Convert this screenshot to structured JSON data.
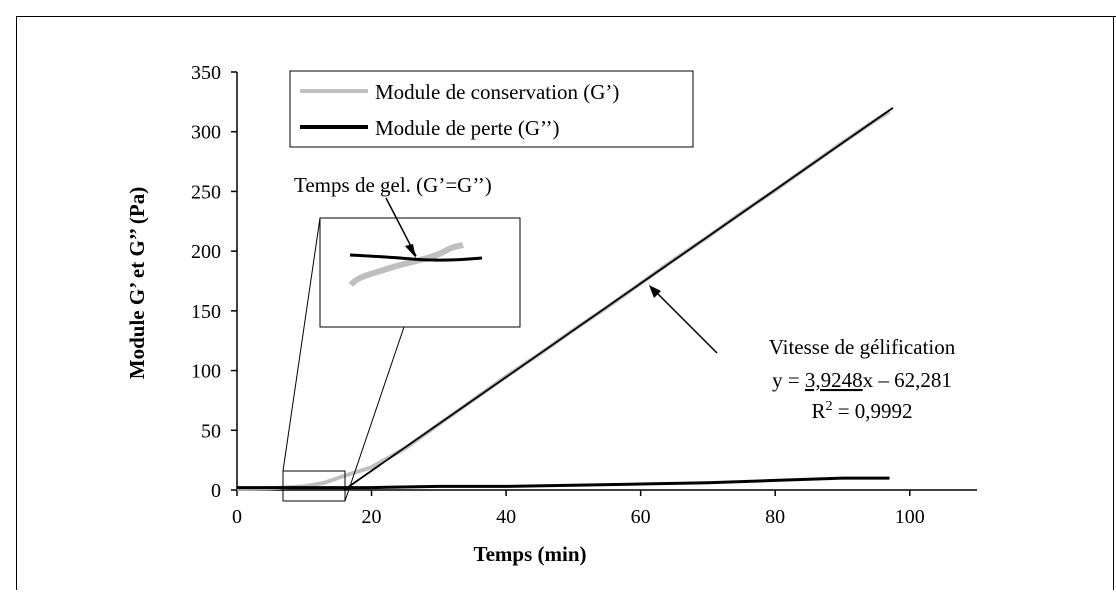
{
  "chart_data": {
    "type": "line",
    "title": "",
    "xlabel": "Temps (min)",
    "ylabel": "Module G’ et G’’ (Pa)",
    "xlim": [
      0,
      110
    ],
    "ylim": [
      0,
      350
    ],
    "x_ticks": [
      0,
      20,
      40,
      60,
      80,
      100
    ],
    "y_ticks": [
      0,
      50,
      100,
      150,
      200,
      250,
      300,
      350
    ],
    "grid": false,
    "legend_position": "top-center",
    "series": [
      {
        "name": "Module de conservation (G’)",
        "color": "#bfbfbf",
        "points": [
          [
            0,
            1
          ],
          [
            5,
            1.5
          ],
          [
            10,
            3
          ],
          [
            13,
            6
          ],
          [
            16,
            12
          ],
          [
            20,
            19
          ],
          [
            25,
            35
          ],
          [
            30,
            55
          ],
          [
            35,
            75
          ],
          [
            40,
            95
          ],
          [
            45,
            114
          ],
          [
            50,
            134
          ],
          [
            55,
            153
          ],
          [
            60,
            173
          ],
          [
            65,
            193
          ],
          [
            70,
            212
          ],
          [
            75,
            232
          ],
          [
            80,
            251
          ],
          [
            85,
            271
          ],
          [
            90,
            291
          ],
          [
            95,
            310
          ],
          [
            97,
            317
          ]
        ]
      },
      {
        "name": "Module de perte (G’’)",
        "color": "#000000",
        "points": [
          [
            0,
            2
          ],
          [
            10,
            2
          ],
          [
            20,
            2
          ],
          [
            30,
            3
          ],
          [
            40,
            3
          ],
          [
            50,
            4
          ],
          [
            60,
            5
          ],
          [
            70,
            6
          ],
          [
            80,
            8
          ],
          [
            90,
            10
          ],
          [
            97,
            10
          ]
        ]
      }
    ],
    "fit_line": {
      "x": [
        15.9,
        97.5
      ],
      "y": [
        0,
        320
      ],
      "slope": 3.9248,
      "intercept": -62.281
    },
    "annotations": {
      "gel_time_label": "Temps de gel. (G’=G’’)",
      "rate_label": "Vitesse de gélification",
      "equation_prefix": "y = ",
      "equation_slope": "3,9248",
      "equation_suffix": "x – 62,281",
      "r2_prefix": "R",
      "r2_exponent": "2",
      "r2_value": " = 0,9992"
    },
    "zoom_region": {
      "x": [
        7,
        16
      ],
      "y": [
        0,
        15
      ]
    }
  }
}
